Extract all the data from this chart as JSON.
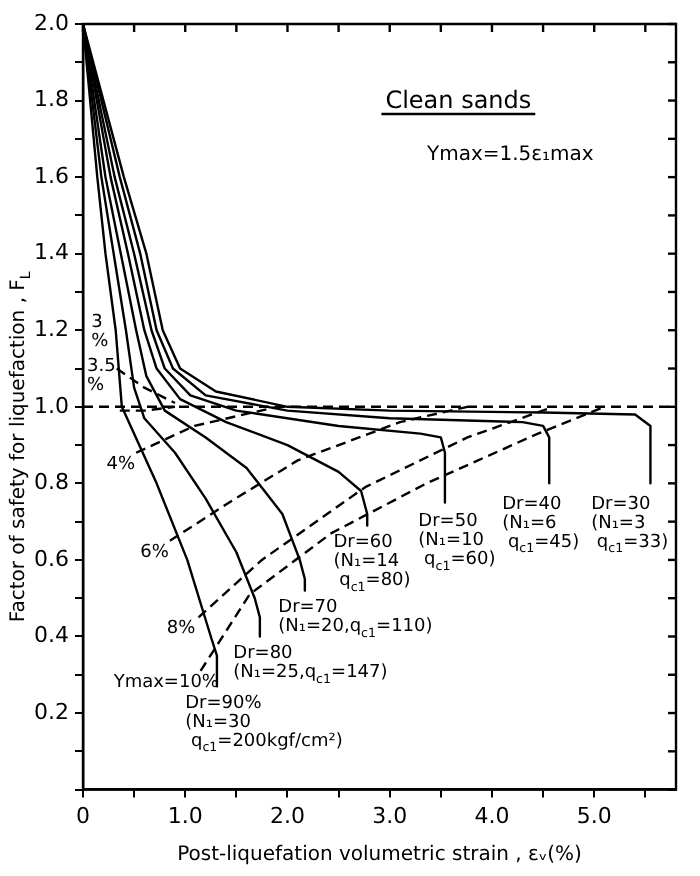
{
  "chart_data": {
    "type": "line",
    "title": "Clean sands",
    "subtitle": "Ymax=1.5ε₁max",
    "xlabel": "Post-liquefation volumetric strain , εᵥ(%)",
    "ylabel": "Factor of safety for liquefaction , F$_{L}$",
    "xlim": [
      0,
      5.8
    ],
    "ylim": [
      0,
      2.0
    ],
    "xticks": [
      {
        "value": 0,
        "label": "0"
      },
      {
        "value": 0.5,
        "label": null
      },
      {
        "value": 1,
        "label": "1.0"
      },
      {
        "value": 1.5,
        "label": null
      },
      {
        "value": 2,
        "label": "2.0"
      },
      {
        "value": 2.5,
        "label": null
      },
      {
        "value": 3,
        "label": "3.0"
      },
      {
        "value": 3.5,
        "label": null
      },
      {
        "value": 4,
        "label": "4.0"
      },
      {
        "value": 4.5,
        "label": null
      },
      {
        "value": 5,
        "label": "5.0"
      },
      {
        "value": 5.5,
        "label": null
      }
    ],
    "yticks": [
      {
        "value": 0,
        "label": null
      },
      {
        "value": 0.1,
        "label": null
      },
      0.2,
      {
        "value": 0.3,
        "label": null
      },
      0.4,
      {
        "value": 0.5,
        "label": null
      },
      0.6,
      {
        "value": 0.7,
        "label": null
      },
      0.8,
      {
        "value": 0.9,
        "label": null
      },
      {
        "value": 1,
        "label": "1.0"
      },
      {
        "value": 1.1,
        "label": null
      },
      1.2,
      {
        "value": 1.3,
        "label": null
      },
      1.4,
      {
        "value": 1.5,
        "label": null
      },
      1.6,
      {
        "value": 1.7,
        "label": null
      },
      1.8,
      {
        "value": 1.9,
        "label": null
      },
      {
        "value": 2,
        "label": "2.0"
      }
    ],
    "grid": false,
    "legend": false,
    "marker": "none",
    "ref_lines": [
      {
        "axis": "y",
        "value": 1.0,
        "line_style": "dashed",
        "color": "#000000"
      }
    ],
    "series": [
      {
        "color": "#000000",
        "line_style": "solid",
        "x": [
          0,
          0.14,
          0.22,
          0.32,
          0.38,
          0.72,
          1.02,
          1.25,
          1.31,
          1.31
        ],
        "values": [
          2,
          1.6,
          1.4,
          1.2,
          1.0,
          0.8,
          0.6,
          0.4,
          0.35,
          0.27
        ]
      },
      {
        "color": "#000000",
        "line_style": "solid",
        "x": [
          0,
          0.18,
          0.3,
          0.42,
          0.5,
          0.6,
          0.9,
          1.2,
          1.5,
          1.68,
          1.73,
          1.73
        ],
        "values": [
          2,
          1.6,
          1.4,
          1.2,
          1.05,
          0.97,
          0.88,
          0.76,
          0.62,
          0.5,
          0.45,
          0.4
        ]
      },
      {
        "color": "#000000",
        "line_style": "solid",
        "x": [
          0,
          0.22,
          0.37,
          0.52,
          0.62,
          0.8,
          1.2,
          1.6,
          1.95,
          2.12,
          2.17,
          2.17
        ],
        "values": [
          2,
          1.6,
          1.4,
          1.2,
          1.08,
          0.99,
          0.92,
          0.84,
          0.72,
          0.6,
          0.55,
          0.52
        ]
      },
      {
        "color": "#000000",
        "line_style": "solid",
        "x": [
          0,
          0.27,
          0.44,
          0.6,
          0.72,
          0.95,
          1.4,
          2.0,
          2.5,
          2.72,
          2.78,
          2.78
        ],
        "values": [
          2,
          1.6,
          1.4,
          1.2,
          1.1,
          1.02,
          0.96,
          0.9,
          0.83,
          0.78,
          0.72,
          0.69
        ]
      },
      {
        "color": "#000000",
        "line_style": "solid",
        "x": [
          0,
          0.31,
          0.5,
          0.67,
          0.8,
          1.05,
          1.5,
          2.5,
          3.3,
          3.5,
          3.54,
          3.54
        ],
        "values": [
          2,
          1.6,
          1.4,
          1.2,
          1.1,
          1.03,
          0.99,
          0.95,
          0.93,
          0.92,
          0.88,
          0.75
        ]
      },
      {
        "color": "#000000",
        "line_style": "solid",
        "x": [
          0,
          0.36,
          0.56,
          0.72,
          0.88,
          1.2,
          2.0,
          3.0,
          4.3,
          4.5,
          4.56,
          4.56
        ],
        "values": [
          2,
          1.6,
          1.4,
          1.2,
          1.1,
          1.03,
          0.99,
          0.97,
          0.96,
          0.95,
          0.92,
          0.8
        ]
      },
      {
        "color": "#000000",
        "line_style": "solid",
        "x": [
          0,
          0.4,
          0.62,
          0.78,
          0.95,
          1.3,
          2.0,
          3.0,
          4.5,
          5.4,
          5.55,
          5.55
        ],
        "values": [
          2,
          1.6,
          1.4,
          1.2,
          1.1,
          1.04,
          1.0,
          0.99,
          0.985,
          0.98,
          0.95,
          0.8
        ]
      },
      {
        "color": "#000000",
        "line_style": "dashed",
        "x": [
          1.15,
          1.63,
          2.43,
          3.36,
          4.45,
          5.1
        ],
        "values": [
          0.31,
          0.51,
          0.67,
          0.8,
          0.93,
          1.0
        ]
      },
      {
        "color": "#000000",
        "line_style": "dashed",
        "x": [
          1.13,
          1.75,
          2.76,
          3.76,
          4.6
        ],
        "values": [
          0.45,
          0.6,
          0.79,
          0.92,
          1.0
        ]
      },
      {
        "color": "#000000",
        "line_style": "dashed",
        "x": [
          0.85,
          1.43,
          2.1,
          3.1,
          3.76
        ],
        "values": [
          0.65,
          0.75,
          0.86,
          0.96,
          1.0
        ]
      },
      {
        "color": "#000000",
        "line_style": "dashed",
        "x": [
          0.52,
          1.09,
          1.9
        ],
        "values": [
          0.88,
          0.95,
          1.0
        ]
      },
      {
        "color": "#000000",
        "line_style": "dashed",
        "x": [
          0.36,
          0.6,
          0.9
        ],
        "values": [
          0.99,
          0.99,
          1.0
        ]
      },
      {
        "color": "#000000",
        "line_style": "dashed",
        "x": [
          0.33,
          0.6,
          0.9
        ],
        "values": [
          1.1,
          1.05,
          1.01
        ]
      }
    ],
    "annotations": [
      "Dr=90%\n(N₁=30\n q$_{c1}$=200kgf/cm²)",
      "Dr=80\n(N₁=25,q$_{c1}$=147)",
      "Dr=70\n(N₁=20,q$_{c1}$=110)",
      "Dr=60\n(N₁=14\n q$_{c1}$=80)",
      "Dr=50\n(N₁=10\n q$_{c1}$=60)",
      "Dr=40\n(N₁=6\n q$_{c1}$=45)",
      "Dr=30\n(N₁=3\n q$_{c1}$=33)",
      "Ymax=10%",
      "8%",
      "6%",
      "4%",
      "3.5\n%",
      "3\n%"
    ]
  }
}
